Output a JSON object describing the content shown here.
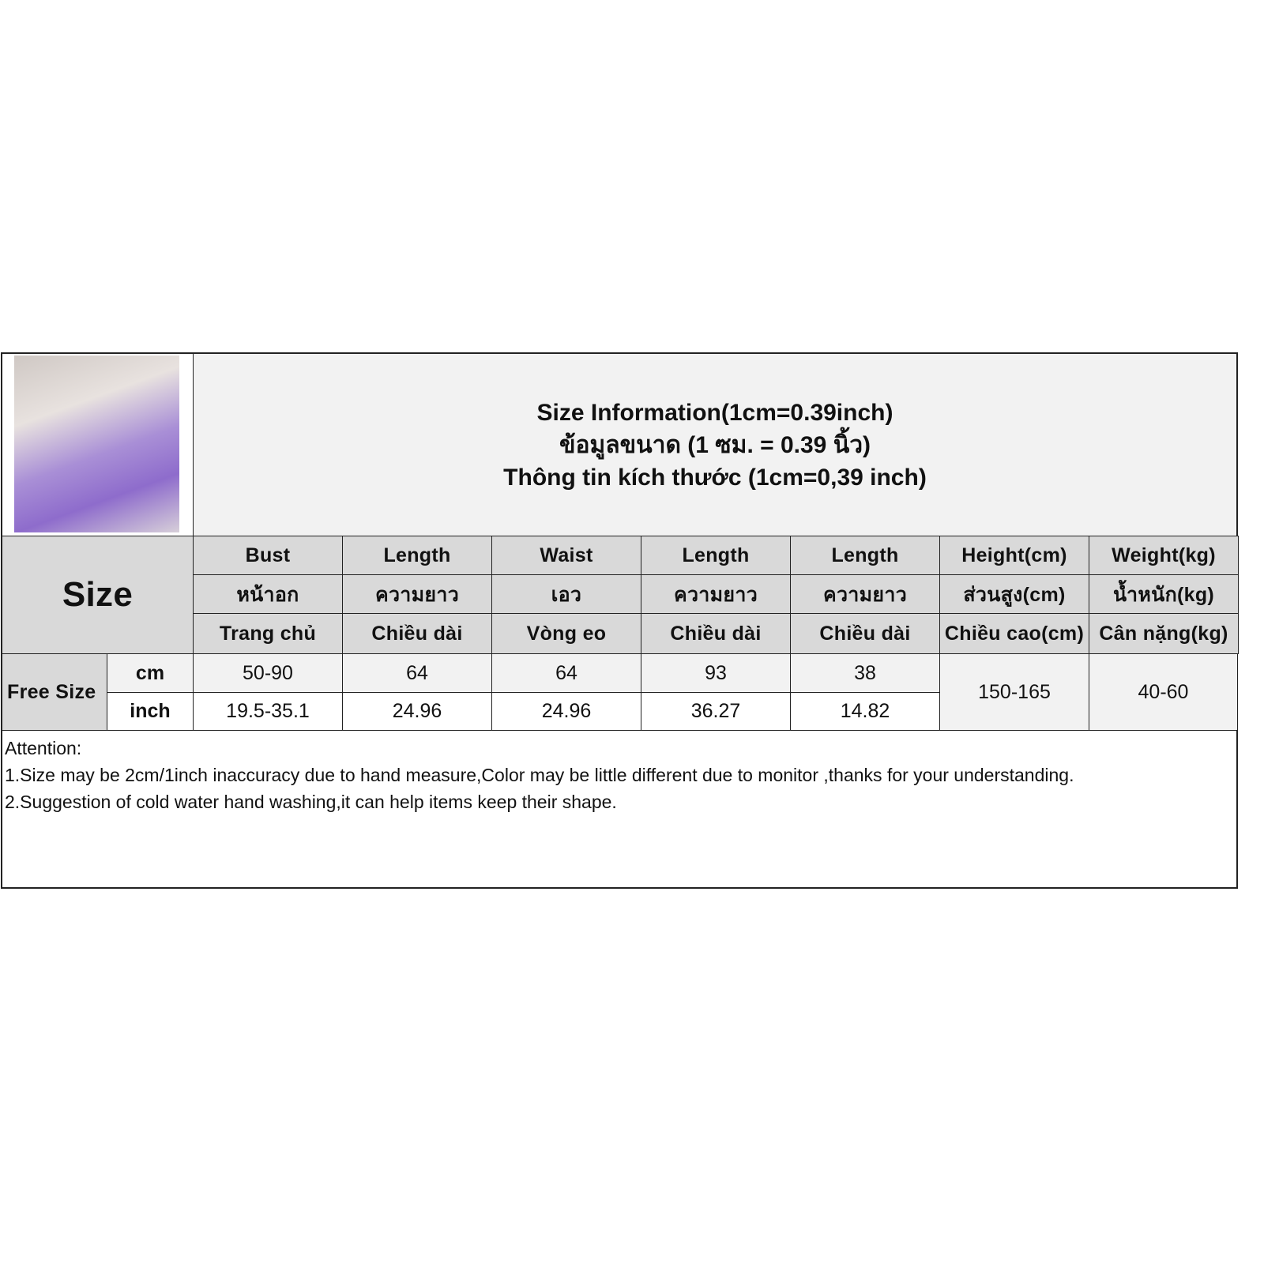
{
  "title": {
    "line1": "Size Information(1cm=0.39inch)",
    "line2": "ข้อมูลขนาด (1 ซม. = 0.39 นิ้ว)",
    "line3": "Thông tin kích thước (1cm=0,39 inch)"
  },
  "size_label": "Size",
  "columns": [
    {
      "en": "Bust",
      "th": "หน้าอก",
      "vi": "Trang chủ"
    },
    {
      "en": "Length",
      "th": "ความยาว",
      "vi": "Chiều dài"
    },
    {
      "en": "Waist",
      "th": "เอว",
      "vi": "Vòng eo"
    },
    {
      "en": "Length",
      "th": "ความยาว",
      "vi": "Chiều dài"
    },
    {
      "en": "Length",
      "th": "ความยาว",
      "vi": "Chiều dài"
    },
    {
      "en": "Height(cm)",
      "th": "ส่วนสูง(cm)",
      "vi": "Chiều cao(cm)"
    },
    {
      "en": "Weight(kg)",
      "th": "น้ำหนัก(kg)",
      "vi": "Cân nặng(kg)"
    }
  ],
  "row": {
    "size": "Free  Size",
    "cm_label": "cm",
    "inch_label": "inch",
    "cm": [
      "50-90",
      "64",
      "64",
      "93",
      "38"
    ],
    "inch": [
      "19.5-35.1",
      "24.96",
      "24.96",
      "36.27",
      "14.82"
    ],
    "height": "150-165",
    "weight": "40-60"
  },
  "notes": {
    "heading": "Attention:",
    "line1": "1.Size may be 2cm/1inch inaccuracy due to hand measure,Color may be little different due to monitor ,thanks for your understanding.",
    "line2": "2.Suggestion of cold water hand washing,it can help items keep their shape."
  }
}
